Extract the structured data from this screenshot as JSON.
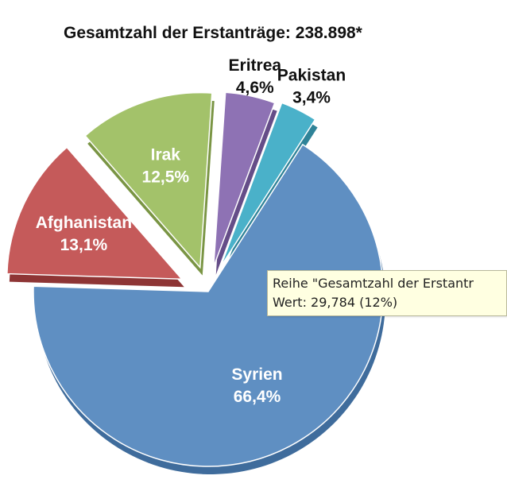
{
  "chart_data": {
    "type": "pie",
    "title": "Gesamtzahl der Erstanträge: 238.898*",
    "slices": [
      {
        "name": "Syrien",
        "label": "66,4%",
        "value": 66.4,
        "color": "#5f8fc2",
        "dark": "#3f6c9c",
        "text_color": "#ffffff",
        "exploded": false
      },
      {
        "name": "Afghanistan",
        "label": "13,1%",
        "value": 13.1,
        "color": "#c55a5a",
        "dark": "#8e3535",
        "text_color": "#ffffff",
        "exploded": true
      },
      {
        "name": "Irak",
        "label": "12,5%",
        "value": 12.5,
        "color": "#a3c26a",
        "dark": "#7a9544",
        "text_color": "#ffffff",
        "exploded": true
      },
      {
        "name": "Eritrea",
        "label": "4,6%",
        "value": 4.6,
        "color": "#8e72b4",
        "dark": "#654d88",
        "text_color": "#111111",
        "exploded": true
      },
      {
        "name": "Pakistan",
        "label": "3,4%",
        "value": 3.4,
        "color": "#4ab1c9",
        "dark": "#2f8398",
        "text_color": "#111111",
        "exploded": true
      }
    ]
  },
  "tooltip": {
    "line1": "Reihe \"Gesamtzahl der Erstantr",
    "line2": "Wert: 29,784 (12%)"
  }
}
